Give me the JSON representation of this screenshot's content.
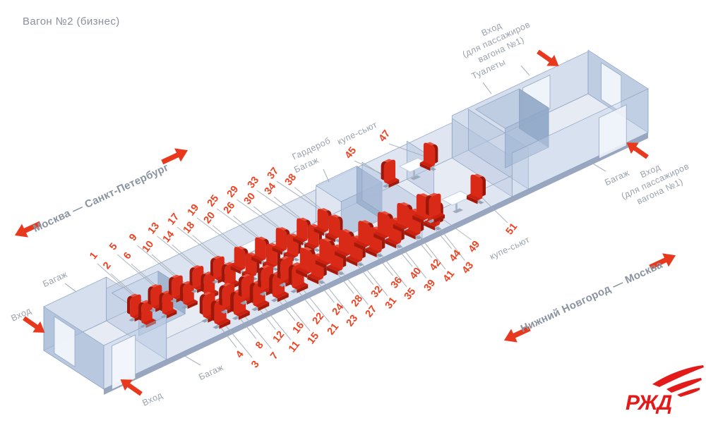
{
  "title": "Вагон №2 (бизнес)",
  "routes": {
    "left": "Москва — Санкт-Петербург",
    "right": "Нижний Новгород — Москва"
  },
  "labels": {
    "entrance": "Вход",
    "entrance_neighbor": {
      "line1": "Вход",
      "line2": "(для пассажиров",
      "line3": "вагона №1)"
    },
    "baggage": "Багаж",
    "wardrobe": "Гардероб",
    "toilets": "Туалеты",
    "suite": "купе-сьют"
  },
  "seats": {
    "top_row_window": [
      "1",
      "5",
      "9",
      "13",
      "17",
      "19",
      "25",
      "29",
      "33",
      "37"
    ],
    "top_row_aisle": [
      "2",
      "6",
      "10",
      "14",
      "18",
      "20",
      "26",
      "30",
      "34",
      "38"
    ],
    "suite_top": [
      "45",
      "47"
    ],
    "bottom_row_aisle": [
      "4",
      "8",
      "12",
      "16",
      "22",
      "24",
      "28",
      "32",
      "36",
      "40",
      "42",
      "44",
      "49"
    ],
    "bottom_row_window": [
      "3",
      "7",
      "11",
      "15",
      "21",
      "23",
      "27",
      "31",
      "35",
      "39",
      "41",
      "43"
    ],
    "suite_bottom": [
      "51"
    ]
  },
  "logo": {
    "text": "РЖД"
  },
  "colors": {
    "accent_red": "#e8391e",
    "seat_red": "#d2230f",
    "number_red": "#ec4323",
    "label_gray": "#9aa2ac",
    "car_blue": "#b7c8e2",
    "logo_red": "#e21a1a"
  }
}
